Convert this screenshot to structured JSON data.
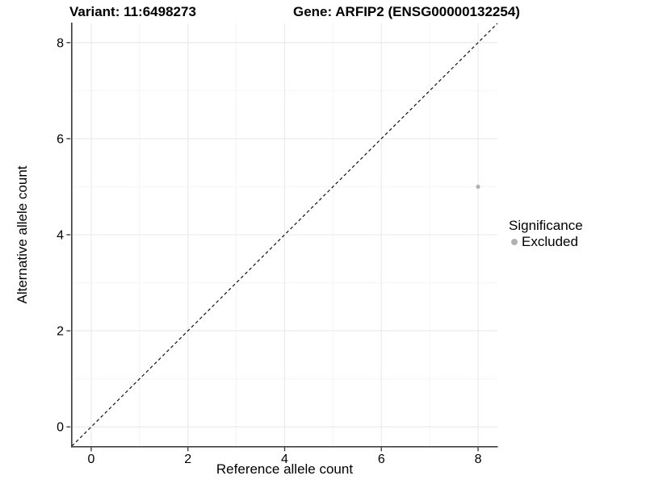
{
  "chart_data": {
    "type": "scatter",
    "title_left": "Variant: 11:6498273",
    "title_right": "Gene: ARFIP2 (ENSG00000132254)",
    "xlabel": "Reference allele count",
    "ylabel": "Alternative allele count",
    "xlim": [
      -0.4,
      8.4
    ],
    "ylim": [
      -0.4,
      8.4
    ],
    "x_ticks": [
      0,
      2,
      4,
      6,
      8
    ],
    "y_ticks": [
      0,
      2,
      4,
      6,
      8
    ],
    "x_minor": [
      1,
      3,
      5,
      7
    ],
    "y_minor": [
      1,
      3,
      5,
      7
    ],
    "grid": true,
    "legend_position": "right",
    "reference_line": {
      "style": "dashed",
      "slope": 1,
      "intercept": 0
    },
    "series": [
      {
        "name": "Excluded",
        "color": "#b1b1b1",
        "points": [
          {
            "x": 8,
            "y": 5
          }
        ]
      }
    ],
    "legend": {
      "title": "Significance",
      "items": [
        {
          "label": "Excluded",
          "color": "#b1b1b1"
        }
      ]
    },
    "colors": {
      "text": "#000000",
      "axis": "#404040",
      "grid_major": "#e9e9e9",
      "grid_minor": "#f4f4f4",
      "reference_line": "#111111",
      "background": "#ffffff"
    }
  }
}
